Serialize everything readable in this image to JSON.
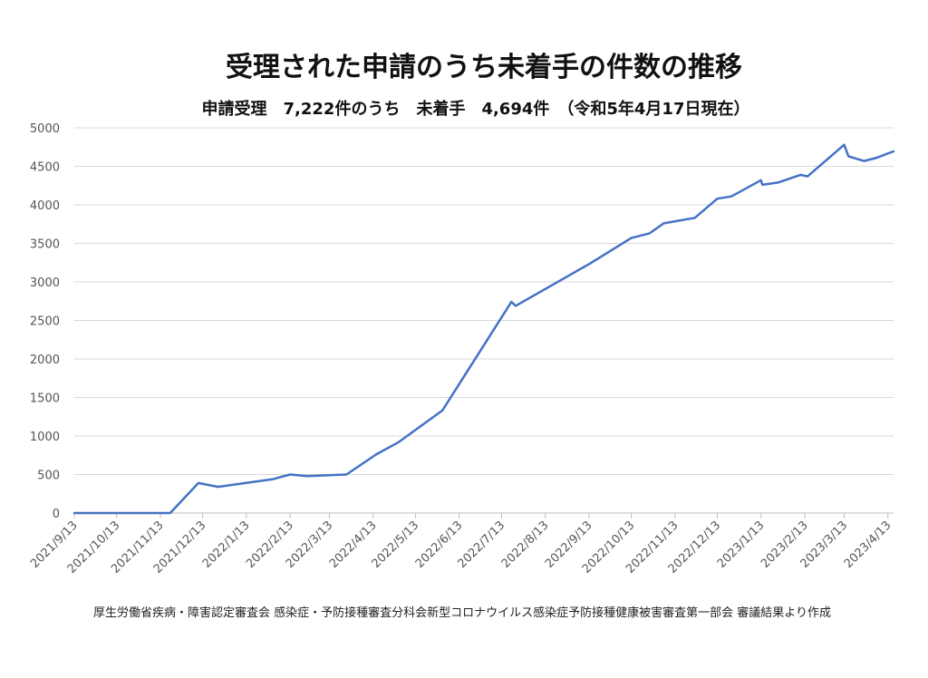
{
  "chart_data": {
    "type": "line",
    "title": "受理された申請のうち未着手の件数の推移",
    "subtitle": "申請受理　7,222件のうち　未着手　4,694件　（令和5年4月17日現在）",
    "source": "厚生労働省疾病・障害認定審査会 感染症・予防接種審査分科会新型コロナウイルス感染症予防接種健康被害審査第一部会 審議結果より作成",
    "xlabel": "",
    "ylabel": "",
    "ylim": [
      0,
      5000
    ],
    "yticks": [
      0,
      500,
      1000,
      1500,
      2000,
      2500,
      3000,
      3500,
      4000,
      4500,
      5000
    ],
    "xlim": [
      "2021-09-13",
      "2023-04-17"
    ],
    "xticks": [
      {
        "date": "2021-09-13",
        "label": "2021/9/13"
      },
      {
        "date": "2021-10-13",
        "label": "2021/10/13"
      },
      {
        "date": "2021-11-13",
        "label": "2021/11/13"
      },
      {
        "date": "2021-12-13",
        "label": "2021/12/13"
      },
      {
        "date": "2022-01-13",
        "label": "2022/1/13"
      },
      {
        "date": "2022-02-13",
        "label": "2022/2/13"
      },
      {
        "date": "2022-03-13",
        "label": "2022/3/13"
      },
      {
        "date": "2022-04-13",
        "label": "2022/4/13"
      },
      {
        "date": "2022-05-13",
        "label": "2022/5/13"
      },
      {
        "date": "2022-06-13",
        "label": "2022/6/13"
      },
      {
        "date": "2022-07-13",
        "label": "2022/7/13"
      },
      {
        "date": "2022-08-13",
        "label": "2022/8/13"
      },
      {
        "date": "2022-09-13",
        "label": "2022/9/13"
      },
      {
        "date": "2022-10-13",
        "label": "2022/10/13"
      },
      {
        "date": "2022-11-13",
        "label": "2022/11/13"
      },
      {
        "date": "2022-12-13",
        "label": "2022/12/13"
      },
      {
        "date": "2023-01-13",
        "label": "2023/1/13"
      },
      {
        "date": "2023-02-13",
        "label": "2023/2/13"
      },
      {
        "date": "2023-03-13",
        "label": "2023/3/13"
      },
      {
        "date": "2023-04-13",
        "label": "2023/4/13"
      }
    ],
    "grid": true,
    "legend": "none",
    "series": [
      {
        "color": "#4472c4",
        "points": [
          {
            "x": "2021-09-13",
            "y": 0
          },
          {
            "x": "2021-11-20",
            "y": 0
          },
          {
            "x": "2021-12-10",
            "y": 390
          },
          {
            "x": "2021-12-24",
            "y": 340
          },
          {
            "x": "2022-02-01",
            "y": 440
          },
          {
            "x": "2022-02-13",
            "y": 500
          },
          {
            "x": "2022-02-25",
            "y": 480
          },
          {
            "x": "2022-03-25",
            "y": 500
          },
          {
            "x": "2022-04-15",
            "y": 760
          },
          {
            "x": "2022-05-01",
            "y": 920
          },
          {
            "x": "2022-06-01",
            "y": 1330
          },
          {
            "x": "2022-07-20",
            "y": 2740
          },
          {
            "x": "2022-07-23",
            "y": 2690
          },
          {
            "x": "2022-09-13",
            "y": 3230
          },
          {
            "x": "2022-10-13",
            "y": 3570
          },
          {
            "x": "2022-10-26",
            "y": 3630
          },
          {
            "x": "2022-11-05",
            "y": 3760
          },
          {
            "x": "2022-11-27",
            "y": 3830
          },
          {
            "x": "2022-12-13",
            "y": 4080
          },
          {
            "x": "2022-12-23",
            "y": 4110
          },
          {
            "x": "2023-01-13",
            "y": 4320
          },
          {
            "x": "2023-01-14",
            "y": 4260
          },
          {
            "x": "2023-01-25",
            "y": 4290
          },
          {
            "x": "2023-02-10",
            "y": 4390
          },
          {
            "x": "2023-02-15",
            "y": 4370
          },
          {
            "x": "2023-03-13",
            "y": 4780
          },
          {
            "x": "2023-03-16",
            "y": 4630
          },
          {
            "x": "2023-03-27",
            "y": 4570
          },
          {
            "x": "2023-04-05",
            "y": 4610
          },
          {
            "x": "2023-04-17",
            "y": 4694
          }
        ]
      }
    ]
  }
}
